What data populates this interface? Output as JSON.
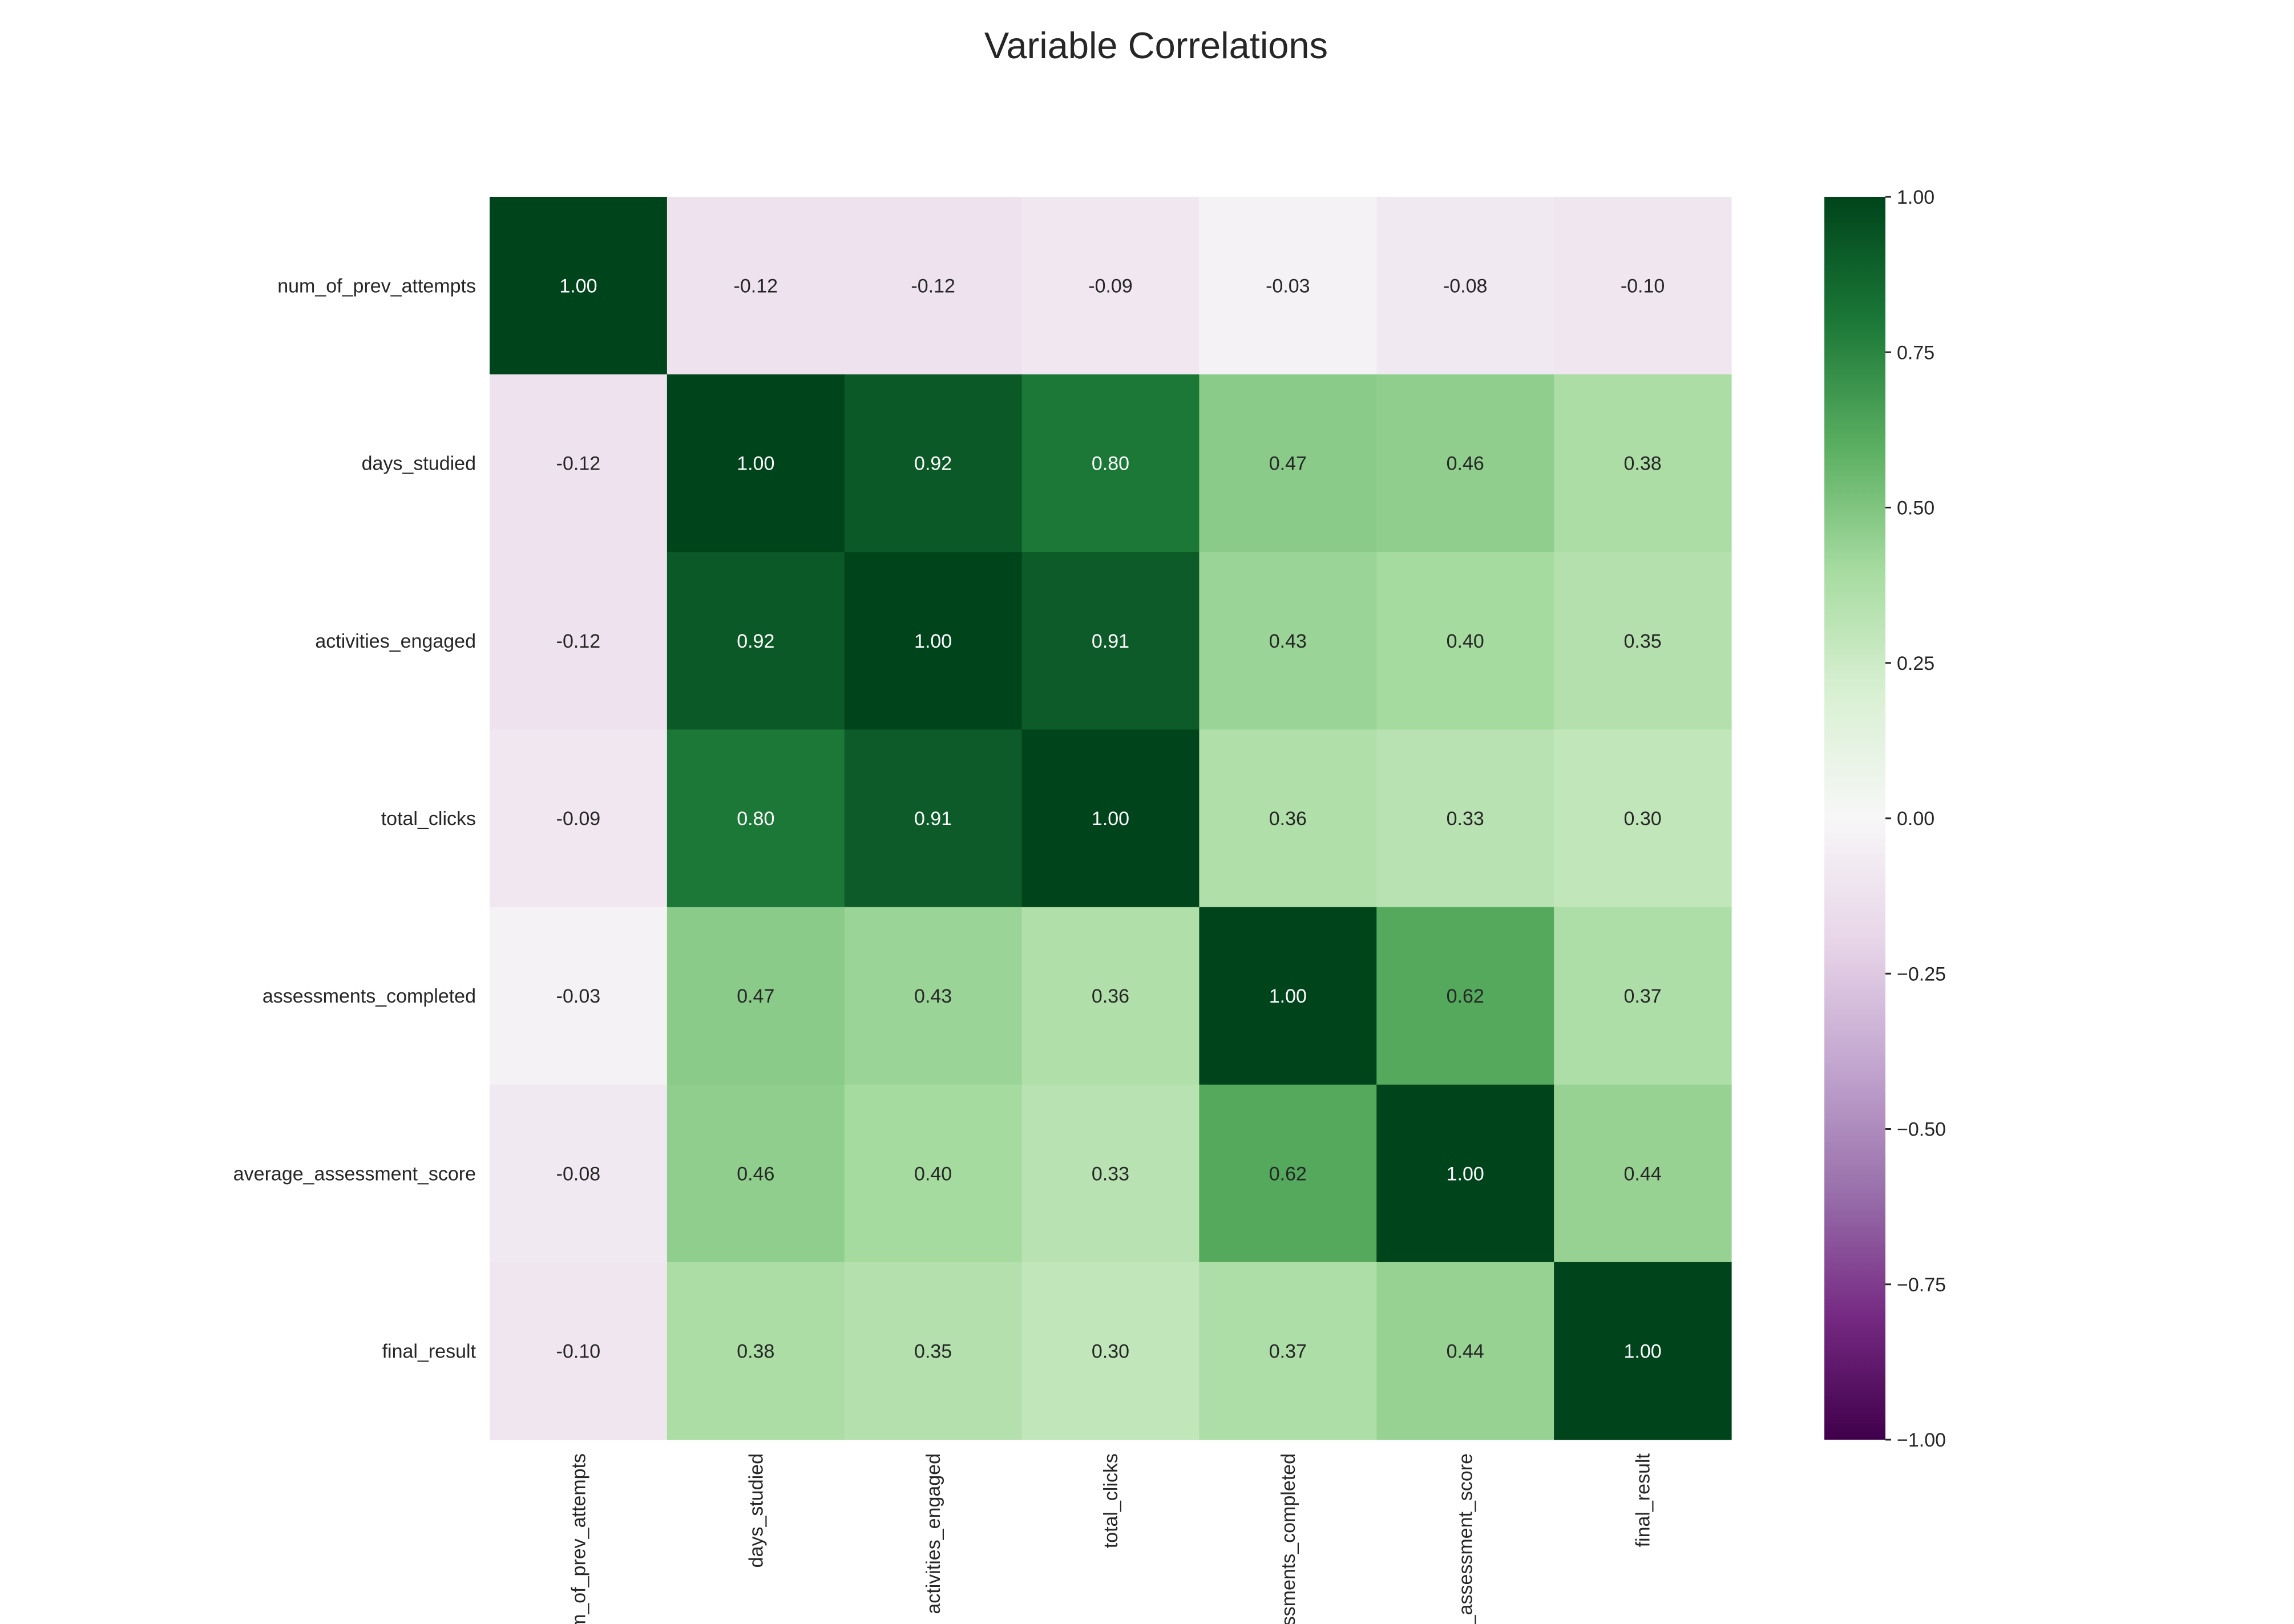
{
  "chart_data": {
    "type": "heatmap",
    "title": "Variable Correlations",
    "row_labels": [
      "num_of_prev_attempts",
      "days_studied",
      "activities_engaged",
      "total_clicks",
      "assessments_completed",
      "average_assessment_score",
      "final_result"
    ],
    "col_labels": [
      "num_of_prev_attempts",
      "days_studied",
      "activities_engaged",
      "total_clicks",
      "assessments_completed",
      "average_assessment_score",
      "final_result"
    ],
    "values": [
      [
        1.0,
        -0.12,
        -0.12,
        -0.09,
        -0.03,
        -0.08,
        -0.1
      ],
      [
        -0.12,
        1.0,
        0.92,
        0.8,
        0.47,
        0.46,
        0.38
      ],
      [
        -0.12,
        0.92,
        1.0,
        0.91,
        0.43,
        0.4,
        0.35
      ],
      [
        -0.09,
        0.8,
        0.91,
        1.0,
        0.36,
        0.33,
        0.3
      ],
      [
        -0.03,
        0.47,
        0.43,
        0.36,
        1.0,
        0.62,
        0.37
      ],
      [
        -0.08,
        0.46,
        0.4,
        0.33,
        0.62,
        1.0,
        0.44
      ],
      [
        -0.1,
        0.38,
        0.35,
        0.3,
        0.37,
        0.44,
        1.0
      ]
    ],
    "value_format": "0.00",
    "colormap": "PRGn",
    "colormap_stops": [
      "#40004b",
      "#762a83",
      "#9970ab",
      "#c2a5cf",
      "#e7d4e8",
      "#f7f7f7",
      "#d9f0d3",
      "#a6dba0",
      "#5aae61",
      "#1b7837",
      "#00441b"
    ],
    "colorbar": {
      "range": [
        -1.0,
        1.0
      ],
      "ticks": [
        1.0,
        0.75,
        0.5,
        0.25,
        0.0,
        -0.25,
        -0.5,
        -0.75,
        -1.0
      ],
      "tick_labels": [
        "1.00",
        "0.75",
        "0.50",
        "0.25",
        "0.00",
        "−0.25",
        "−0.50",
        "−0.75",
        "−1.00"
      ],
      "position": "right"
    },
    "grid": false
  }
}
